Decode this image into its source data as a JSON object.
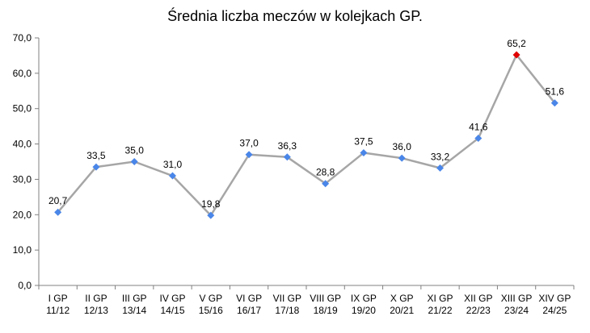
{
  "chart_data": {
    "type": "line",
    "title": "Średnia liczba meczów w kolejkach GP.",
    "xlabel": "",
    "ylabel": "",
    "ylim": [
      0,
      70
    ],
    "yticks": [
      "0,0",
      "10,0",
      "20,0",
      "30,0",
      "40,0",
      "50,0",
      "60,0",
      "70,0"
    ],
    "ytick_values": [
      0,
      10,
      20,
      30,
      40,
      50,
      60,
      70
    ],
    "grid": false,
    "legend": "none",
    "categories": [
      [
        "I GP",
        "11/12"
      ],
      [
        "II GP",
        "12/13"
      ],
      [
        "III GP",
        "13/14"
      ],
      [
        "IV GP",
        "14/15"
      ],
      [
        "V GP",
        "15/16"
      ],
      [
        "VI GP",
        "16/17"
      ],
      [
        "VII GP",
        "17/18"
      ],
      [
        "VIII GP",
        "18/19"
      ],
      [
        "IX GP",
        "19/20"
      ],
      [
        "X GP",
        "20/21"
      ],
      [
        "XI GP",
        "21/22"
      ],
      [
        "XII GP",
        "22/23"
      ],
      [
        "XIII GP",
        "23/24"
      ],
      [
        "XIV GP",
        "24/25"
      ]
    ],
    "series": [
      {
        "values": [
          20.7,
          33.5,
          35.0,
          31.0,
          19.8,
          37.0,
          36.3,
          28.8,
          37.5,
          36.0,
          33.2,
          41.6,
          65.2,
          51.6
        ],
        "labels": [
          "20,7",
          "33,5",
          "35,0",
          "31,0",
          "19,8",
          "37,0",
          "36,3",
          "28,8",
          "37,5",
          "36,0",
          "33,2",
          "41,6",
          "65,2",
          "51,6"
        ],
        "highlight_index": 12
      }
    ],
    "colors": {
      "line": "#a6a6a6",
      "marker": "#4a86e8",
      "highlight_marker": "#e00000",
      "axis": "#808080"
    }
  }
}
